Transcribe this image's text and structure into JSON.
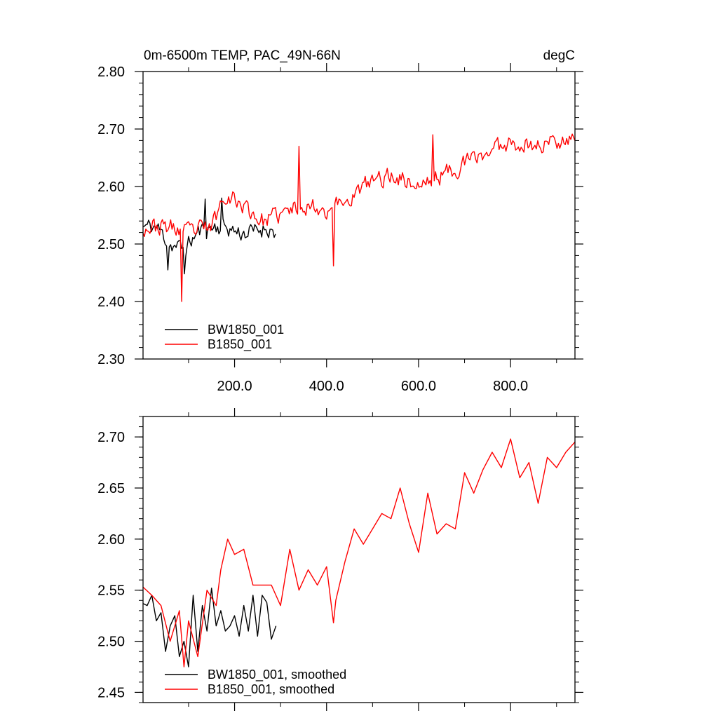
{
  "chart_data": [
    {
      "type": "line",
      "title": "0m-6500m TEMP, PAC_49N-66N",
      "units": "degC",
      "xlim": [
        1,
        940
      ],
      "ylim": [
        2.3,
        2.8
      ],
      "xticks": [
        200,
        400,
        600,
        800
      ],
      "xtick_labels": [
        "200.0",
        "400.0",
        "600.0",
        "800.0"
      ],
      "yticks": [
        2.3,
        2.4,
        2.5,
        2.6,
        2.7,
        2.8
      ],
      "ytick_labels": [
        "2.30",
        "2.40",
        "2.50",
        "2.60",
        "2.70",
        "2.80"
      ],
      "legend_location": "lower-left",
      "series": [
        {
          "name": "BW1850_001",
          "color": "#000000",
          "x_range": [
            1,
            290
          ],
          "anchors": [
            [
              1,
              2.53
            ],
            [
              30,
              2.53
            ],
            [
              60,
              2.5
            ],
            [
              90,
              2.49
            ],
            [
              120,
              2.52
            ],
            [
              150,
              2.53
            ],
            [
              180,
              2.53
            ],
            [
              210,
              2.52
            ],
            [
              240,
              2.52
            ],
            [
              270,
              2.53
            ],
            [
              290,
              2.52
            ]
          ],
          "noise": 0.025,
          "seed": 11,
          "spikes": [
            [
              55,
              2.455
            ],
            [
              90,
              2.448
            ],
            [
              135,
              2.578
            ],
            [
              172,
              2.58
            ]
          ]
        },
        {
          "name": "B1850_001",
          "color": "#ff0000",
          "x_range": [
            1,
            940
          ],
          "anchors": [
            [
              1,
              2.53
            ],
            [
              50,
              2.53
            ],
            [
              100,
              2.52
            ],
            [
              150,
              2.53
            ],
            [
              180,
              2.59
            ],
            [
              230,
              2.56
            ],
            [
              260,
              2.54
            ],
            [
              300,
              2.55
            ],
            [
              350,
              2.57
            ],
            [
              400,
              2.56
            ],
            [
              450,
              2.58
            ],
            [
              500,
              2.61
            ],
            [
              550,
              2.62
            ],
            [
              600,
              2.6
            ],
            [
              650,
              2.62
            ],
            [
              700,
              2.64
            ],
            [
              750,
              2.66
            ],
            [
              800,
              2.68
            ],
            [
              850,
              2.67
            ],
            [
              900,
              2.68
            ],
            [
              940,
              2.69
            ]
          ],
          "noise": 0.025,
          "seed": 23,
          "spikes": [
            [
              85,
              2.4
            ],
            [
              340,
              2.67
            ],
            [
              415,
              2.462
            ],
            [
              630,
              2.69
            ]
          ]
        }
      ]
    },
    {
      "type": "line",
      "title": "",
      "xlim": [
        1,
        940
      ],
      "ylim": [
        2.44,
        2.72
      ],
      "xticks": [
        200,
        400,
        600,
        800
      ],
      "yticks": [
        2.45,
        2.5,
        2.55,
        2.6,
        2.65,
        2.7
      ],
      "ytick_labels": [
        "2.45",
        "2.50",
        "2.55",
        "2.60",
        "2.65",
        "2.70"
      ],
      "legend_location": "lower-left",
      "series": [
        {
          "name": "BW1850_001, smoothed",
          "color": "#000000",
          "x": [
            1,
            10,
            20,
            30,
            40,
            50,
            60,
            70,
            80,
            90,
            100,
            110,
            120,
            130,
            140,
            150,
            160,
            170,
            180,
            190,
            200,
            210,
            220,
            230,
            240,
            250,
            260,
            270,
            280,
            290
          ],
          "values": [
            2.537,
            2.535,
            2.545,
            2.52,
            2.528,
            2.49,
            2.515,
            2.525,
            2.485,
            2.5,
            2.475,
            2.545,
            2.49,
            2.535,
            2.51,
            2.552,
            2.515,
            2.53,
            2.51,
            2.515,
            2.525,
            2.505,
            2.535,
            2.51,
            2.545,
            2.505,
            2.545,
            2.538,
            2.502,
            2.515
          ]
        },
        {
          "name": "B1850_001, smoothed",
          "color": "#ff0000",
          "x": [
            1,
            20,
            40,
            60,
            80,
            90,
            100,
            120,
            140,
            160,
            170,
            185,
            200,
            220,
            240,
            260,
            280,
            300,
            320,
            340,
            360,
            380,
            400,
            415,
            420,
            440,
            460,
            480,
            500,
            520,
            540,
            560,
            580,
            600,
            620,
            640,
            660,
            680,
            700,
            720,
            740,
            760,
            780,
            800,
            820,
            840,
            860,
            880,
            900,
            920,
            940
          ],
          "values": [
            2.553,
            2.545,
            2.535,
            2.5,
            2.53,
            2.475,
            2.52,
            2.485,
            2.55,
            2.535,
            2.57,
            2.6,
            2.585,
            2.59,
            2.555,
            2.555,
            2.555,
            2.535,
            2.59,
            2.55,
            2.57,
            2.555,
            2.573,
            2.518,
            2.54,
            2.578,
            2.61,
            2.595,
            2.61,
            2.625,
            2.62,
            2.65,
            2.615,
            2.587,
            2.645,
            2.605,
            2.615,
            2.61,
            2.665,
            2.645,
            2.668,
            2.685,
            2.67,
            2.698,
            2.66,
            2.675,
            2.635,
            2.68,
            2.67,
            2.685,
            2.695
          ]
        }
      ]
    }
  ],
  "chart1": {
    "title_left": "0m-6500m TEMP, PAC_49N-66N",
    "title_right": "degC",
    "legend": [
      "BW1850_001",
      "B1850_001"
    ]
  },
  "chart2": {
    "legend": [
      "BW1850_001, smoothed",
      "B1850_001, smoothed"
    ]
  }
}
